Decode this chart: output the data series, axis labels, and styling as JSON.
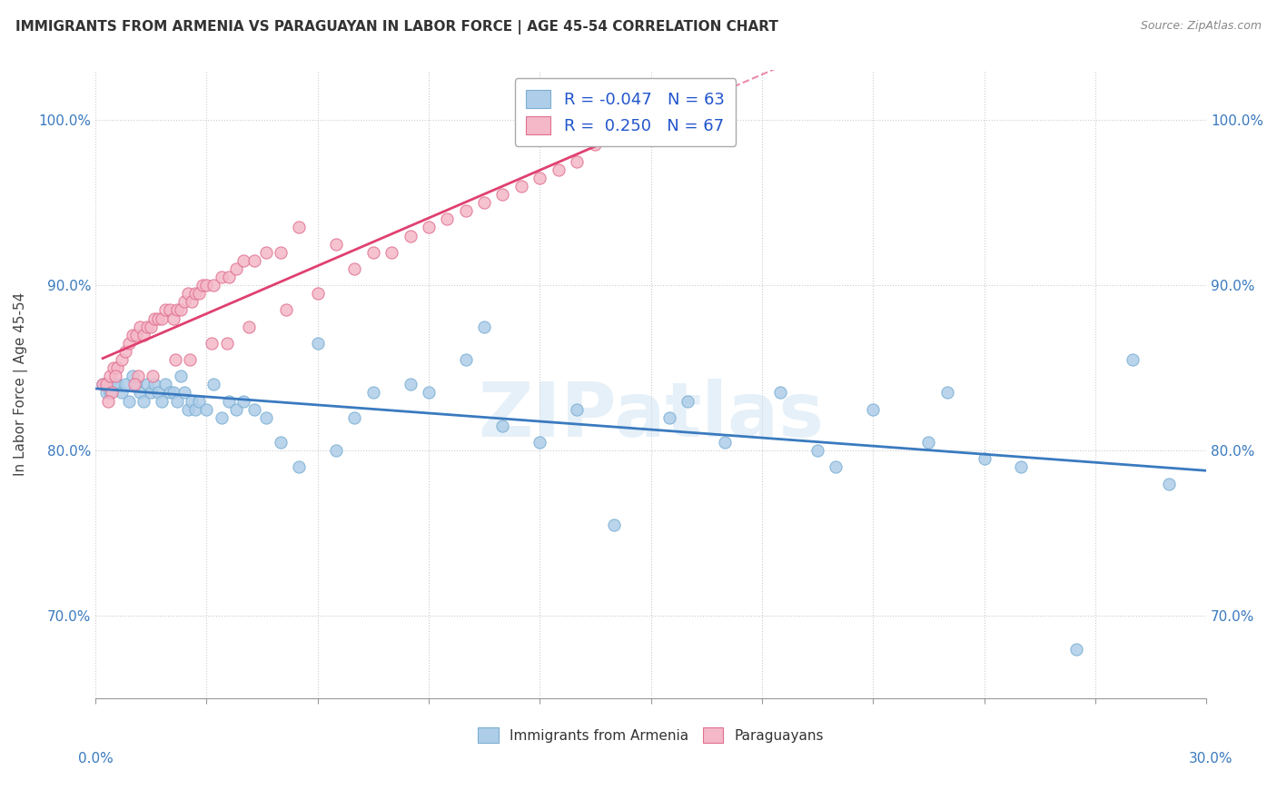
{
  "title": "IMMIGRANTS FROM ARMENIA VS PARAGUAYAN IN LABOR FORCE | AGE 45-54 CORRELATION CHART",
  "source": "Source: ZipAtlas.com",
  "ylabel": "In Labor Force | Age 45-54",
  "y_ticks": [
    70.0,
    80.0,
    90.0,
    100.0
  ],
  "y_tick_labels": [
    "70.0%",
    "80.0%",
    "90.0%",
    "100.0%"
  ],
  "xlim": [
    0.0,
    30.0
  ],
  "ylim": [
    65.0,
    103.0
  ],
  "watermark": "ZIPatlas",
  "armenia": {
    "name": "Immigrants from Armenia",
    "color": "#aecde8",
    "edge_color": "#7aafd4",
    "R": -0.047,
    "N": 63,
    "trend_color": "#3a7abf",
    "x": [
      0.2,
      0.3,
      0.4,
      0.5,
      0.6,
      0.7,
      0.8,
      0.9,
      1.0,
      1.1,
      1.2,
      1.3,
      1.4,
      1.5,
      1.6,
      1.7,
      1.8,
      1.9,
      2.0,
      2.1,
      2.2,
      2.3,
      2.4,
      2.5,
      2.6,
      2.7,
      2.8,
      3.0,
      3.2,
      3.4,
      3.6,
      3.8,
      4.0,
      4.3,
      4.6,
      5.0,
      5.5,
      6.0,
      7.0,
      8.5,
      9.0,
      10.0,
      11.0,
      12.0,
      13.0,
      14.0,
      15.5,
      17.0,
      18.5,
      20.0,
      21.0,
      22.5,
      24.0,
      25.0,
      26.5,
      28.0,
      29.0,
      10.5,
      6.5,
      7.5,
      16.0,
      19.5,
      23.0
    ],
    "y": [
      84.0,
      83.5,
      83.5,
      84.0,
      84.0,
      83.5,
      84.0,
      83.0,
      84.5,
      84.0,
      83.5,
      83.0,
      84.0,
      83.5,
      84.0,
      83.5,
      83.0,
      84.0,
      83.5,
      83.5,
      83.0,
      84.5,
      83.5,
      82.5,
      83.0,
      82.5,
      83.0,
      82.5,
      84.0,
      82.0,
      83.0,
      82.5,
      83.0,
      82.5,
      82.0,
      80.5,
      79.0,
      86.5,
      82.0,
      84.0,
      83.5,
      85.5,
      81.5,
      80.5,
      82.5,
      75.5,
      82.0,
      80.5,
      83.5,
      79.0,
      82.5,
      80.5,
      79.5,
      79.0,
      68.0,
      85.5,
      78.0,
      87.5,
      80.0,
      83.5,
      83.0,
      80.0,
      83.5
    ]
  },
  "paraguay": {
    "name": "Paraguayans",
    "color": "#f4b8c8",
    "edge_color": "#e07090",
    "R": 0.25,
    "N": 67,
    "trend_color": "#e04070",
    "trend_solid_xmax": 14.0,
    "x": [
      0.2,
      0.3,
      0.4,
      0.5,
      0.6,
      0.7,
      0.8,
      0.9,
      1.0,
      1.1,
      1.2,
      1.3,
      1.4,
      1.5,
      1.6,
      1.7,
      1.8,
      1.9,
      2.0,
      2.1,
      2.2,
      2.3,
      2.4,
      2.5,
      2.6,
      2.7,
      2.8,
      2.9,
      3.0,
      3.2,
      3.4,
      3.6,
      3.8,
      4.0,
      4.3,
      4.6,
      5.0,
      5.5,
      6.0,
      6.5,
      7.0,
      7.5,
      8.0,
      8.5,
      9.0,
      9.5,
      10.0,
      10.5,
      11.0,
      11.5,
      12.0,
      12.5,
      13.0,
      13.5,
      14.0,
      1.15,
      2.15,
      3.15,
      4.15,
      5.15,
      0.45,
      0.55,
      0.35,
      1.05,
      1.55,
      2.55,
      3.55
    ],
    "y": [
      84.0,
      84.0,
      84.5,
      85.0,
      85.0,
      85.5,
      86.0,
      86.5,
      87.0,
      87.0,
      87.5,
      87.0,
      87.5,
      87.5,
      88.0,
      88.0,
      88.0,
      88.5,
      88.5,
      88.0,
      88.5,
      88.5,
      89.0,
      89.5,
      89.0,
      89.5,
      89.5,
      90.0,
      90.0,
      90.0,
      90.5,
      90.5,
      91.0,
      91.5,
      91.5,
      92.0,
      92.0,
      93.5,
      89.5,
      92.5,
      91.0,
      92.0,
      92.0,
      93.0,
      93.5,
      94.0,
      94.5,
      95.0,
      95.5,
      96.0,
      96.5,
      97.0,
      97.5,
      98.5,
      99.5,
      84.5,
      85.5,
      86.5,
      87.5,
      88.5,
      83.5,
      84.5,
      83.0,
      84.0,
      84.5,
      85.5,
      86.5
    ]
  }
}
